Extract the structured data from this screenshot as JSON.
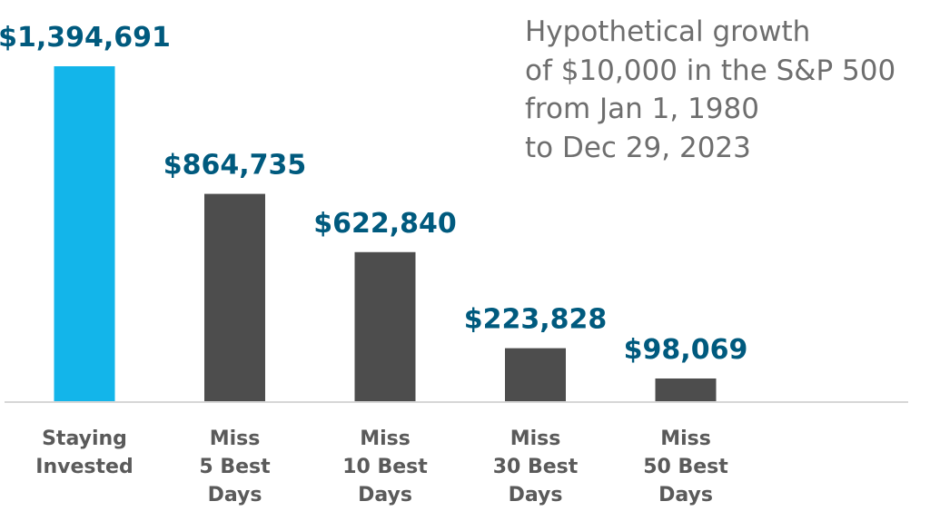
{
  "chart_data": {
    "type": "bar",
    "title": "",
    "subtitle_lines": [
      "Hypothetical growth",
      "of $10,000 in the S&P 500",
      "from Jan 1, 1980",
      "to Dec 29, 2023"
    ],
    "categories": [
      [
        "Staying",
        "Invested"
      ],
      [
        "Miss",
        "5 Best",
        "Days"
      ],
      [
        "Miss",
        "10 Best",
        "Days"
      ],
      [
        "Miss",
        "30 Best",
        "Days"
      ],
      [
        "Miss",
        "50 Best",
        "Days"
      ]
    ],
    "values": [
      1394691,
      864735,
      622840,
      223828,
      98069
    ],
    "value_labels": [
      "$1,394,691",
      "$864,735",
      "$622,840",
      "$223,828",
      "$98,069"
    ],
    "xlabel": "",
    "ylabel": "",
    "ylim": [
      0,
      1394691
    ],
    "grid": false,
    "legend": "none",
    "colors": {
      "highlight_bar": "#13b5ea",
      "bar": "#4d4d4d",
      "value_label": "#005a7e",
      "category_label": "#5a5a5a",
      "baseline": "#d6d6d6",
      "subtitle": "#6e6e6e"
    }
  }
}
